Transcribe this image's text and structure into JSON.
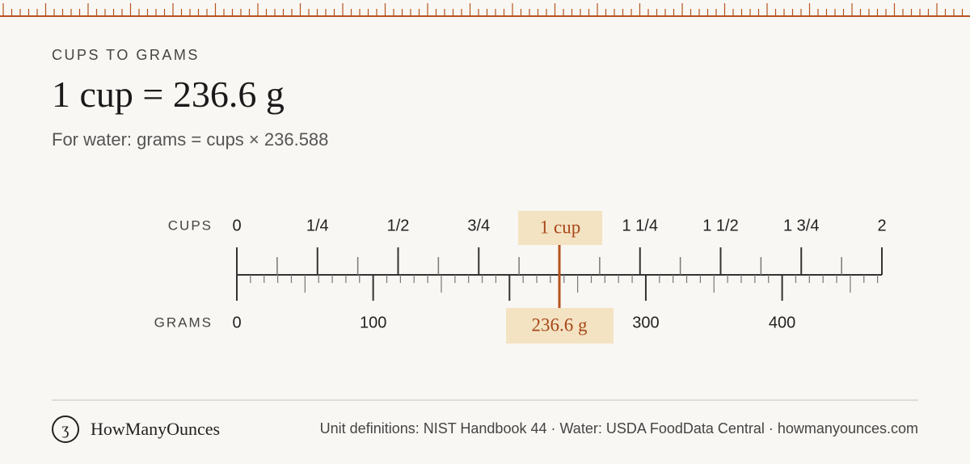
{
  "header": {
    "eyebrow": "CUPS TO GRAMS",
    "title": "1 cup = 236.6 g",
    "subtitle": "For water: grams = cups × 236.588"
  },
  "ruler": {
    "top_label": "CUPS",
    "bottom_label": "GRAMS",
    "cups_lim": [
      0,
      2
    ],
    "grams_lim": [
      0,
      473.176
    ],
    "cups_major_step": 0.25,
    "cups_minor_step": 0.125,
    "grams_major_step": 100,
    "grams_mid_step": 50,
    "grams_minor_step": 10,
    "cups_ticks": [
      {
        "value": 0,
        "label": "0"
      },
      {
        "value": 0.25,
        "label": "1/4"
      },
      {
        "value": 0.5,
        "label": "1/2"
      },
      {
        "value": 0.75,
        "label": "3/4"
      },
      {
        "value": 1.25,
        "label": "1 1/4"
      },
      {
        "value": 1.5,
        "label": "1 1/2"
      },
      {
        "value": 1.75,
        "label": "1 3/4"
      },
      2
    ],
    "grams_ticks": [
      0,
      100,
      300,
      400
    ],
    "marker": {
      "cups": 1,
      "cups_label": "1 cup",
      "grams": 236.6,
      "grams_label": "236.6 g"
    }
  },
  "footer": {
    "brand": "HowManyOunces",
    "sources": "Unit definitions: NIST Handbook 44 · Water: USDA FoodData Central · howmanyounces.com"
  }
}
